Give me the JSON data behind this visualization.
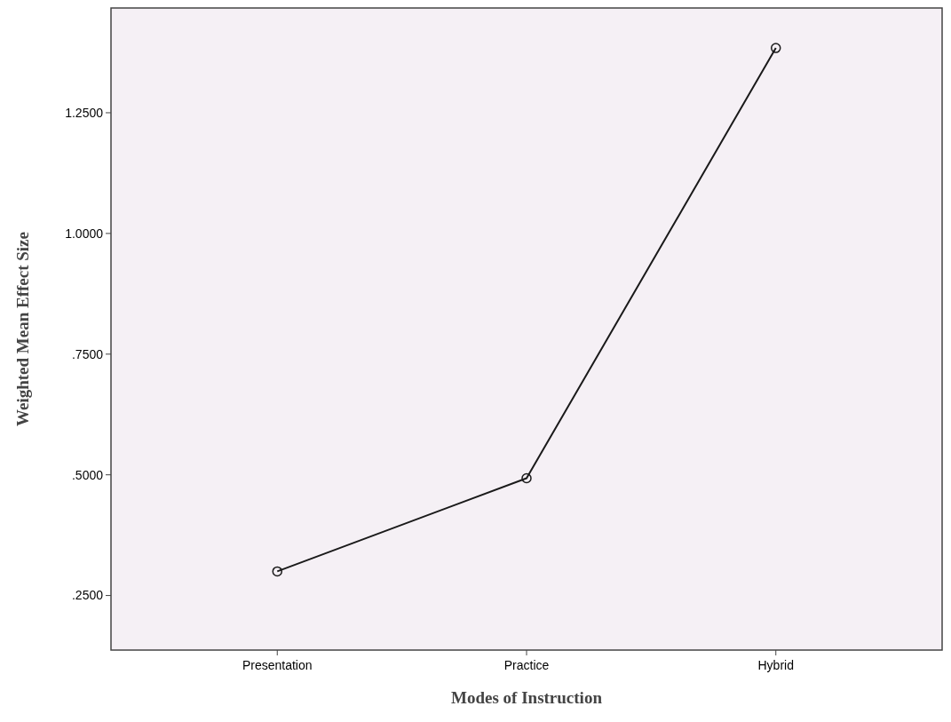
{
  "chart_data": {
    "type": "line",
    "xlabel": "Modes of Instruction",
    "ylabel": "Weighted Mean Effect Size",
    "categories": [
      "Presentation",
      "Practice",
      "Hybrid"
    ],
    "series": [
      {
        "color": "#1a1a1a",
        "values": [
          0.3,
          0.493,
          1.384
        ]
      }
    ],
    "ylim": [
      0.137,
      1.467
    ],
    "yticks": [
      {
        "value": 0.25,
        "label": ".2500"
      },
      {
        "value": 0.5,
        "label": ".5000"
      },
      {
        "value": 0.75,
        "label": ".7500"
      },
      {
        "value": 1.0,
        "label": "1.0000"
      },
      {
        "value": 1.25,
        "label": "1.2500"
      }
    ],
    "marker": "circle",
    "line_style": "solid",
    "grid": false
  }
}
